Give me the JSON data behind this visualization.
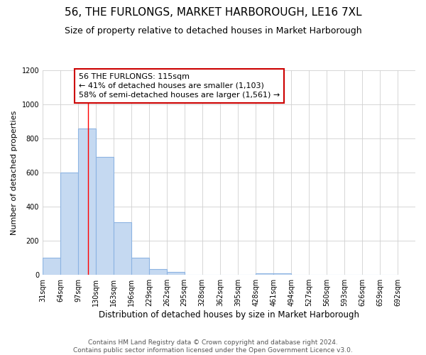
{
  "title": "56, THE FURLONGS, MARKET HARBOROUGH, LE16 7XL",
  "subtitle": "Size of property relative to detached houses in Market Harborough",
  "xlabel": "Distribution of detached houses by size in Market Harborough",
  "ylabel": "Number of detached properties",
  "footer_line1": "Contains HM Land Registry data © Crown copyright and database right 2024.",
  "footer_line2": "Contains public sector information licensed under the Open Government Licence v3.0.",
  "bin_edges": [
    31,
    64,
    97,
    130,
    163,
    196,
    229,
    262,
    295,
    328,
    362,
    395,
    428,
    461,
    494,
    527,
    560,
    593,
    626,
    659,
    692
  ],
  "bar_heights": [
    100,
    600,
    860,
    690,
    310,
    100,
    35,
    15,
    0,
    0,
    0,
    0,
    10,
    10,
    0,
    0,
    0,
    0,
    0,
    0
  ],
  "bar_color": "#c5d9f1",
  "bar_edge_color": "#8db4e2",
  "red_line_x": 115,
  "annotation_text": "56 THE FURLONGS: 115sqm\n← 41% of detached houses are smaller (1,103)\n58% of semi-detached houses are larger (1,561) →",
  "annotation_box_color": "#ffffff",
  "annotation_box_edge_color": "#cc0000",
  "ylim": [
    0,
    1200
  ],
  "yticks": [
    0,
    200,
    400,
    600,
    800,
    1000,
    1200
  ],
  "background_color": "#ffffff",
  "grid_color": "#d0d0d0",
  "title_fontsize": 11,
  "subtitle_fontsize": 9,
  "ylabel_fontsize": 8,
  "xlabel_fontsize": 8.5,
  "tick_fontsize": 7,
  "footer_fontsize": 6.5,
  "annot_fontsize": 8
}
